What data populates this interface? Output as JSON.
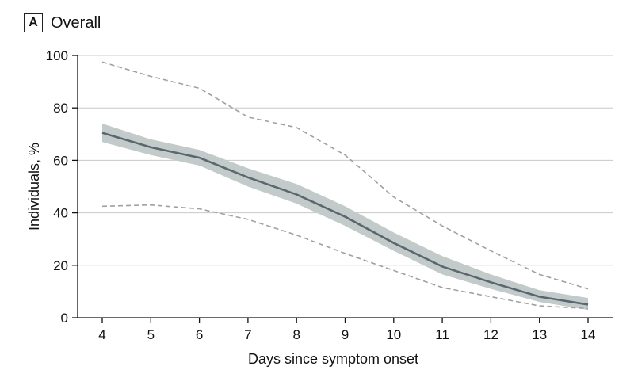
{
  "panel": {
    "badge": "A",
    "title": "Overall"
  },
  "chart_data": {
    "type": "line",
    "xlabel": "Days since symptom onset",
    "ylabel": "Individuals, %",
    "xlim": [
      4,
      14
    ],
    "ylim": [
      0,
      100
    ],
    "x_ticks": [
      4,
      5,
      6,
      7,
      8,
      9,
      10,
      11,
      12,
      13,
      14
    ],
    "y_ticks": [
      0,
      20,
      40,
      60,
      80,
      100
    ],
    "grid": "horizontal",
    "legend": "none",
    "x": [
      4,
      5,
      6,
      7,
      8,
      9,
      10,
      11,
      12,
      13,
      14
    ],
    "series": [
      {
        "role": "estimate",
        "style": "solid",
        "color": "#5b6770",
        "values": [
          70.5,
          65,
          61,
          53.5,
          47,
          38.5,
          28.5,
          19.5,
          13.5,
          8,
          5
        ]
      },
      {
        "role": "ci_upper",
        "style": "band",
        "color": "#c3cbca",
        "values": [
          74,
          68,
          64,
          57,
          51,
          42.5,
          32.5,
          23.5,
          16.5,
          10.5,
          7.5
        ]
      },
      {
        "role": "ci_lower",
        "style": "band",
        "color": "#c3cbca",
        "values": [
          67,
          62,
          58,
          50,
          43.5,
          35,
          25.5,
          16.5,
          11,
          6,
          3
        ]
      },
      {
        "role": "range_upper",
        "style": "dashed",
        "color": "#a0a0a0",
        "values": [
          97.5,
          92,
          87.5,
          76.5,
          72.5,
          62,
          46,
          35,
          25.5,
          16.5,
          11
        ]
      },
      {
        "role": "range_lower",
        "style": "dashed",
        "color": "#a0a0a0",
        "values": [
          42.5,
          43,
          41.5,
          37.5,
          31.5,
          24.5,
          18,
          11.5,
          8,
          4.5,
          3.5
        ]
      }
    ]
  }
}
